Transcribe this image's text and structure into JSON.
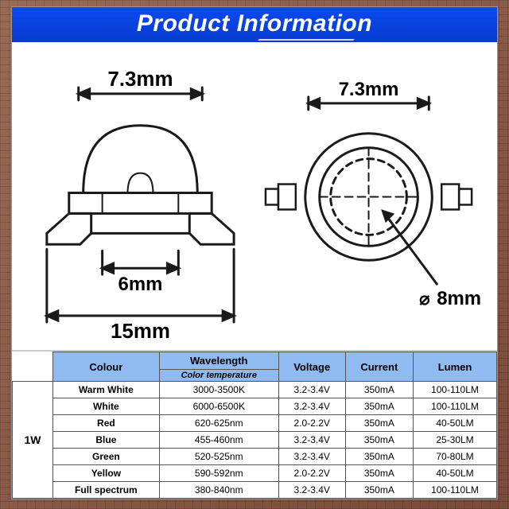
{
  "title": "Product Information",
  "title_bg": "#0a3fe0",
  "diagram": {
    "side": {
      "overall_width": "15mm",
      "base_width": "6mm",
      "dome_width": "7.3mm"
    },
    "top": {
      "ring_outer": "7.3mm",
      "lens_dia_label": "8mm",
      "dia_prefix": "⌀"
    },
    "stroke": "#1a1a1a",
    "label_fontsize": 22
  },
  "table": {
    "header_bg": "#8fbaf2",
    "watt_label": "1W",
    "columns": [
      "Colour",
      "Wavelength",
      "Voltage",
      "Current",
      "Lumen"
    ],
    "wavelength_sub": "Color temperature",
    "rows": [
      {
        "colour": "Warm White",
        "wavelength": "3000-3500K",
        "voltage": "3.2-3.4V",
        "current": "350mA",
        "lumen": "100-110LM"
      },
      {
        "colour": "White",
        "wavelength": "6000-6500K",
        "voltage": "3.2-3.4V",
        "current": "350mA",
        "lumen": "100-110LM"
      },
      {
        "colour": "Red",
        "wavelength": "620-625nm",
        "voltage": "2.0-2.2V",
        "current": "350mA",
        "lumen": "40-50LM"
      },
      {
        "colour": "Blue",
        "wavelength": "455-460nm",
        "voltage": "3.2-3.4V",
        "current": "350mA",
        "lumen": "25-30LM"
      },
      {
        "colour": "Green",
        "wavelength": "520-525nm",
        "voltage": "3.2-3.4V",
        "current": "350mA",
        "lumen": "70-80LM"
      },
      {
        "colour": "Yellow",
        "wavelength": "590-592nm",
        "voltage": "2.0-2.2V",
        "current": "350mA",
        "lumen": "40-50LM"
      },
      {
        "colour": "Full spectrum",
        "wavelength": "380-840nm",
        "voltage": "3.2-3.4V",
        "current": "350mA",
        "lumen": "100-110LM"
      }
    ]
  }
}
